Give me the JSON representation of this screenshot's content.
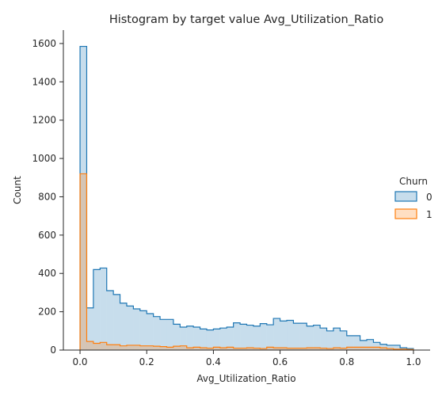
{
  "chart_data": {
    "type": "histogram",
    "title": "Histogram by target value Avg_Utilization_Ratio",
    "xlabel": "Avg_Utilization_Ratio",
    "ylabel": "Count",
    "xlim": [
      -0.05,
      1.05
    ],
    "ylim": [
      0,
      1670
    ],
    "xticks": [
      0.0,
      0.2,
      0.4,
      0.6,
      0.8,
      1.0
    ],
    "xtick_labels": [
      "0.0",
      "0.2",
      "0.4",
      "0.6",
      "0.8",
      "1.0"
    ],
    "yticks": [
      0,
      200,
      400,
      600,
      800,
      1000,
      1200,
      1400,
      1600
    ],
    "ytick_labels": [
      "0",
      "200",
      "400",
      "600",
      "800",
      "1000",
      "1200",
      "1400",
      "1600"
    ],
    "grid": false,
    "legend": {
      "title": "Churn",
      "placement": "right"
    },
    "bin_edges": [
      0.0,
      0.02,
      0.04,
      0.06,
      0.08,
      0.1,
      0.12,
      0.14,
      0.16,
      0.18,
      0.2,
      0.22,
      0.24,
      0.26,
      0.28,
      0.3,
      0.32,
      0.34,
      0.36,
      0.38,
      0.4,
      0.42,
      0.44,
      0.46,
      0.48,
      0.5,
      0.52,
      0.54,
      0.56,
      0.58,
      0.6,
      0.62,
      0.64,
      0.66,
      0.68,
      0.7,
      0.72,
      0.74,
      0.76,
      0.78,
      0.8,
      0.82,
      0.84,
      0.86,
      0.88,
      0.9,
      0.92,
      0.94,
      0.96,
      0.98,
      1.0
    ],
    "series": [
      {
        "name": "0",
        "line_color": "#1f77b4",
        "fill_color": "#1f77b4",
        "values": [
          1585,
          220,
          420,
          428,
          310,
          290,
          245,
          230,
          215,
          205,
          190,
          175,
          160,
          160,
          135,
          120,
          125,
          120,
          110,
          105,
          110,
          115,
          120,
          142,
          135,
          130,
          125,
          138,
          132,
          165,
          152,
          155,
          140,
          140,
          125,
          130,
          115,
          100,
          115,
          100,
          75,
          75,
          50,
          55,
          40,
          30,
          25,
          25,
          12,
          8
        ]
      },
      {
        "name": "1",
        "line_color": "#ff7f0e",
        "fill_color": "#ff7f0e",
        "values": [
          920,
          45,
          35,
          40,
          28,
          28,
          22,
          25,
          25,
          22,
          22,
          20,
          18,
          15,
          20,
          22,
          12,
          15,
          12,
          10,
          15,
          12,
          15,
          10,
          10,
          12,
          10,
          8,
          15,
          12,
          12,
          10,
          10,
          10,
          12,
          12,
          10,
          8,
          12,
          10,
          15,
          15,
          15,
          15,
          15,
          12,
          8,
          5,
          5,
          3
        ]
      }
    ]
  }
}
